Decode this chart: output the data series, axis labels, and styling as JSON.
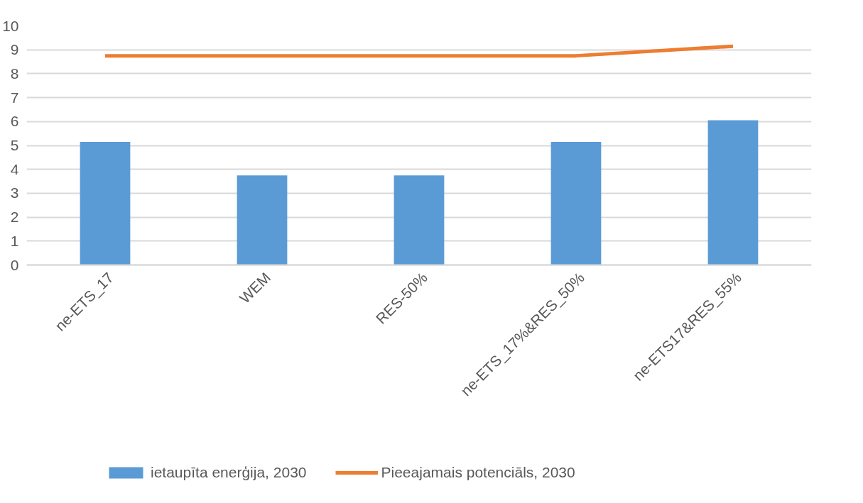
{
  "chart_data": {
    "type": "bar",
    "categories": [
      "ne-ETS_17",
      "WEM",
      "RES-50%",
      "ne-ETS_17%&RES_50%",
      "ne-ETS17&RES_55%"
    ],
    "series": [
      {
        "name": "ietaupīta enerģija, 2030",
        "color": "#5b9bd5",
        "values": [
          5.15,
          3.75,
          3.75,
          5.15,
          6.05
        ]
      },
      {
        "name": "Pieeajamais potenciāls, 2030",
        "color": "#ed7d31",
        "type": "line",
        "values": [
          8.75,
          8.75,
          8.75,
          8.75,
          9.15
        ]
      }
    ],
    "ylim": [
      0,
      10
    ],
    "yticks": [
      0,
      1,
      2,
      3,
      4,
      5,
      6,
      7,
      8,
      9,
      10
    ],
    "grid": "y",
    "legend": "bottom",
    "marker": "none",
    "line_style": "solid"
  }
}
